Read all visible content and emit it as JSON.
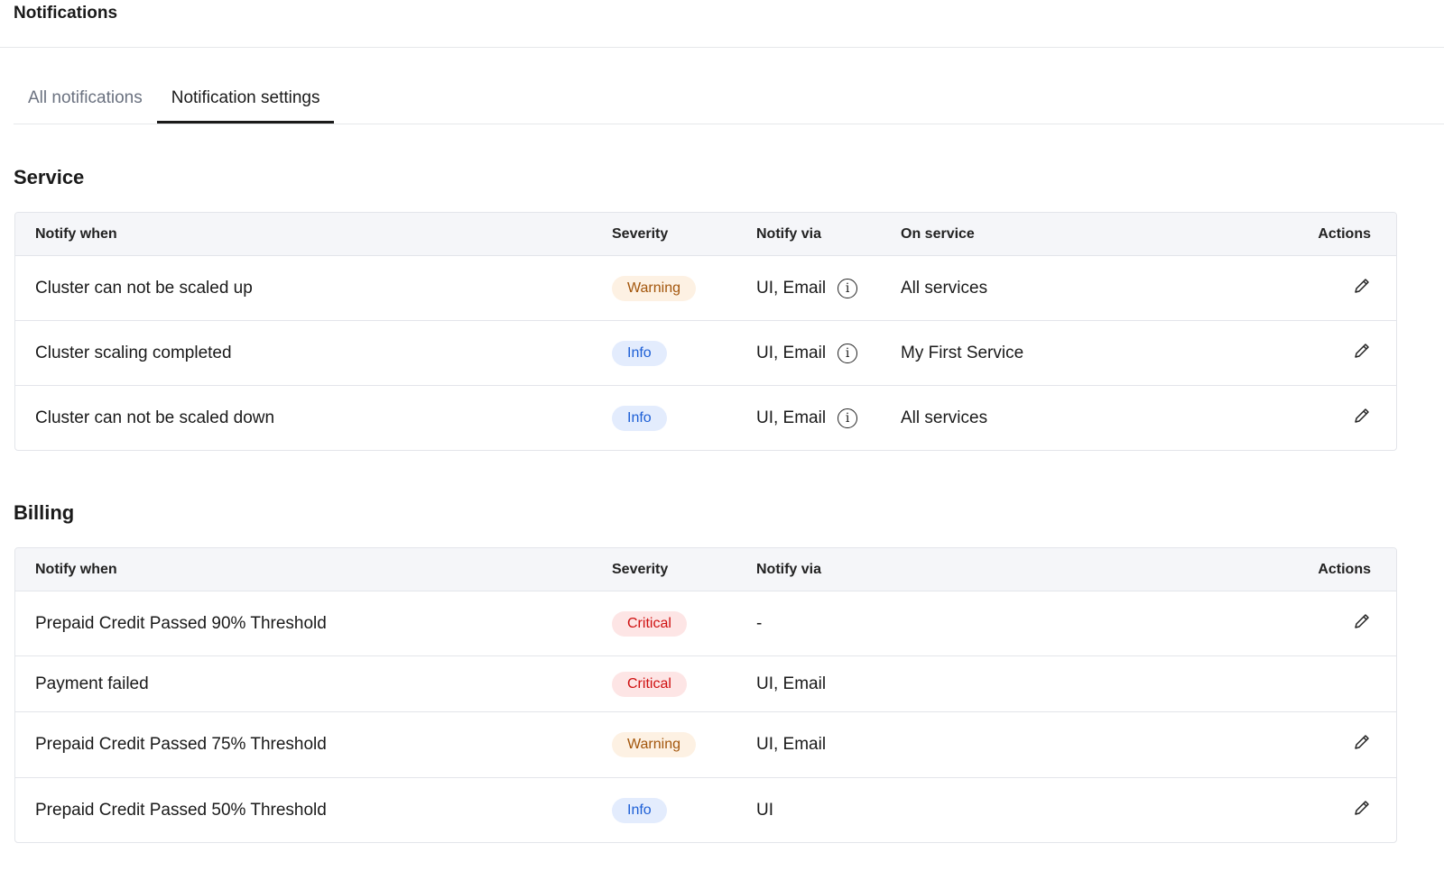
{
  "header": {
    "title": "Notifications"
  },
  "tabs": [
    {
      "label": "All notifications",
      "active": false
    },
    {
      "label": "Notification settings",
      "active": true
    }
  ],
  "service": {
    "title": "Service",
    "columns": [
      "Notify when",
      "Severity",
      "Notify via",
      "On service",
      "Actions"
    ],
    "rows": [
      {
        "notify_when": "Cluster can not be scaled up",
        "severity": "Warning",
        "notify_via": "UI, Email",
        "on_service": "All services"
      },
      {
        "notify_when": "Cluster scaling completed",
        "severity": "Info",
        "notify_via": "UI, Email",
        "on_service": "My First Service"
      },
      {
        "notify_when": "Cluster can not be scaled down",
        "severity": "Info",
        "notify_via": "UI, Email",
        "on_service": "All services"
      }
    ]
  },
  "billing": {
    "title": "Billing",
    "columns": [
      "Notify when",
      "Severity",
      "Notify via",
      "Actions"
    ],
    "rows": [
      {
        "notify_when": "Prepaid Credit Passed 90% Threshold",
        "severity": "Critical",
        "notify_via": "-",
        "editable": true
      },
      {
        "notify_when": "Payment failed",
        "severity": "Critical",
        "notify_via": "UI, Email",
        "editable": false
      },
      {
        "notify_when": "Prepaid Credit Passed 75% Threshold",
        "severity": "Warning",
        "notify_via": "UI, Email",
        "editable": true
      },
      {
        "notify_when": "Prepaid Credit Passed 50% Threshold",
        "severity": "Info",
        "notify_via": "UI",
        "editable": true
      }
    ]
  },
  "colors": {
    "warning": "#a3560c",
    "info": "#1d5fd6",
    "critical": "#cf1010"
  }
}
